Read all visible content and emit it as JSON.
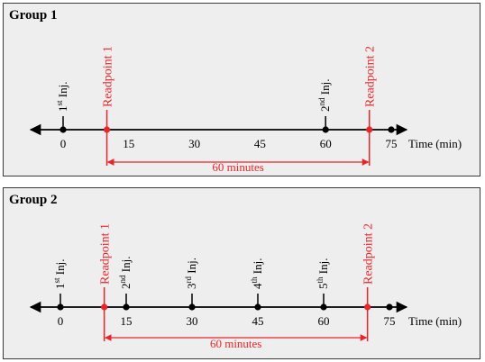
{
  "colors": {
    "panel_bg": "#eeeeee",
    "axis": "#000000",
    "accent": "#e8262a"
  },
  "time_label": "Time (min)",
  "tick_labels": [
    "0",
    "15",
    "30",
    "45",
    "60",
    "75"
  ],
  "groups": [
    {
      "title": "Group 1",
      "injections": [
        {
          "time": 0,
          "ordinal": "1",
          "sup": "st",
          "word": "Inj."
        },
        {
          "time": 60,
          "ordinal": "2",
          "sup": "nd",
          "word": "Inj."
        }
      ],
      "readpoints": [
        {
          "time": 10,
          "label": "Readpoint 1"
        },
        {
          "time": 70,
          "label": "Readpoint 2"
        }
      ],
      "span_label": "60 minutes"
    },
    {
      "title": "Group 2",
      "injections": [
        {
          "time": 0,
          "ordinal": "1",
          "sup": "st",
          "word": "Inj."
        },
        {
          "time": 15,
          "ordinal": "2",
          "sup": "nd",
          "word": "Inj."
        },
        {
          "time": 30,
          "ordinal": "3",
          "sup": "rd",
          "word": "Inj."
        },
        {
          "time": 45,
          "ordinal": "4",
          "sup": "th",
          "word": "Inj."
        },
        {
          "time": 60,
          "ordinal": "5",
          "sup": "th",
          "word": "Inj."
        }
      ],
      "readpoints": [
        {
          "time": 10,
          "label": "Readpoint 1"
        },
        {
          "time": 70,
          "label": "Readpoint 2"
        }
      ],
      "span_label": "60 minutes"
    }
  ]
}
